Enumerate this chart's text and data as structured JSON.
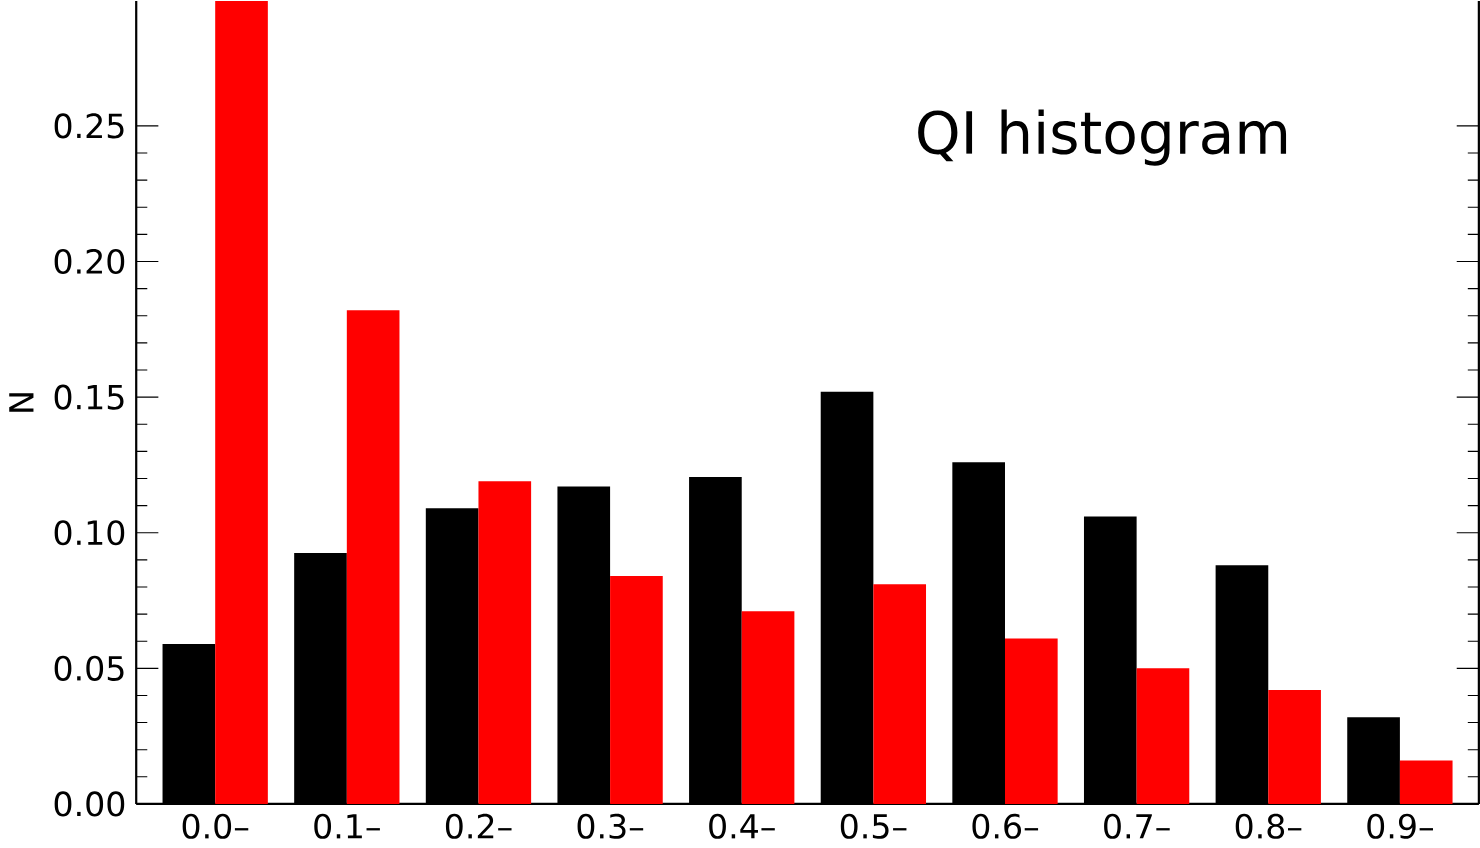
{
  "chart_data": {
    "type": "bar",
    "annotations": [
      "QI histogram"
    ],
    "ylabel": "N",
    "categories": [
      "0.0–",
      "0.1–",
      "0.2–",
      "0.3–",
      "0.4–",
      "0.5–",
      "0.6–",
      "0.7–",
      "0.8–",
      "0.9–"
    ],
    "series": [
      {
        "color": "#000000",
        "values": [
          0.059,
          0.0925,
          0.109,
          0.117,
          0.1205,
          0.152,
          0.126,
          0.106,
          0.088,
          0.032
        ]
      },
      {
        "color": "#ff0000",
        "values": [
          0.296,
          0.182,
          0.119,
          0.084,
          0.071,
          0.081,
          0.061,
          0.05,
          0.042,
          0.016
        ]
      }
    ],
    "ylim": [
      0,
      0.296
    ],
    "yticks": [
      {
        "value": 0,
        "label": "0.00"
      },
      {
        "value": 0.05,
        "label": "0.05"
      },
      {
        "value": 0.1,
        "label": "0.10"
      },
      {
        "value": 0.15,
        "label": "0.15"
      },
      {
        "value": 0.2,
        "label": "0.20"
      },
      {
        "value": 0.25,
        "label": "0.25"
      }
    ],
    "grid": false
  }
}
